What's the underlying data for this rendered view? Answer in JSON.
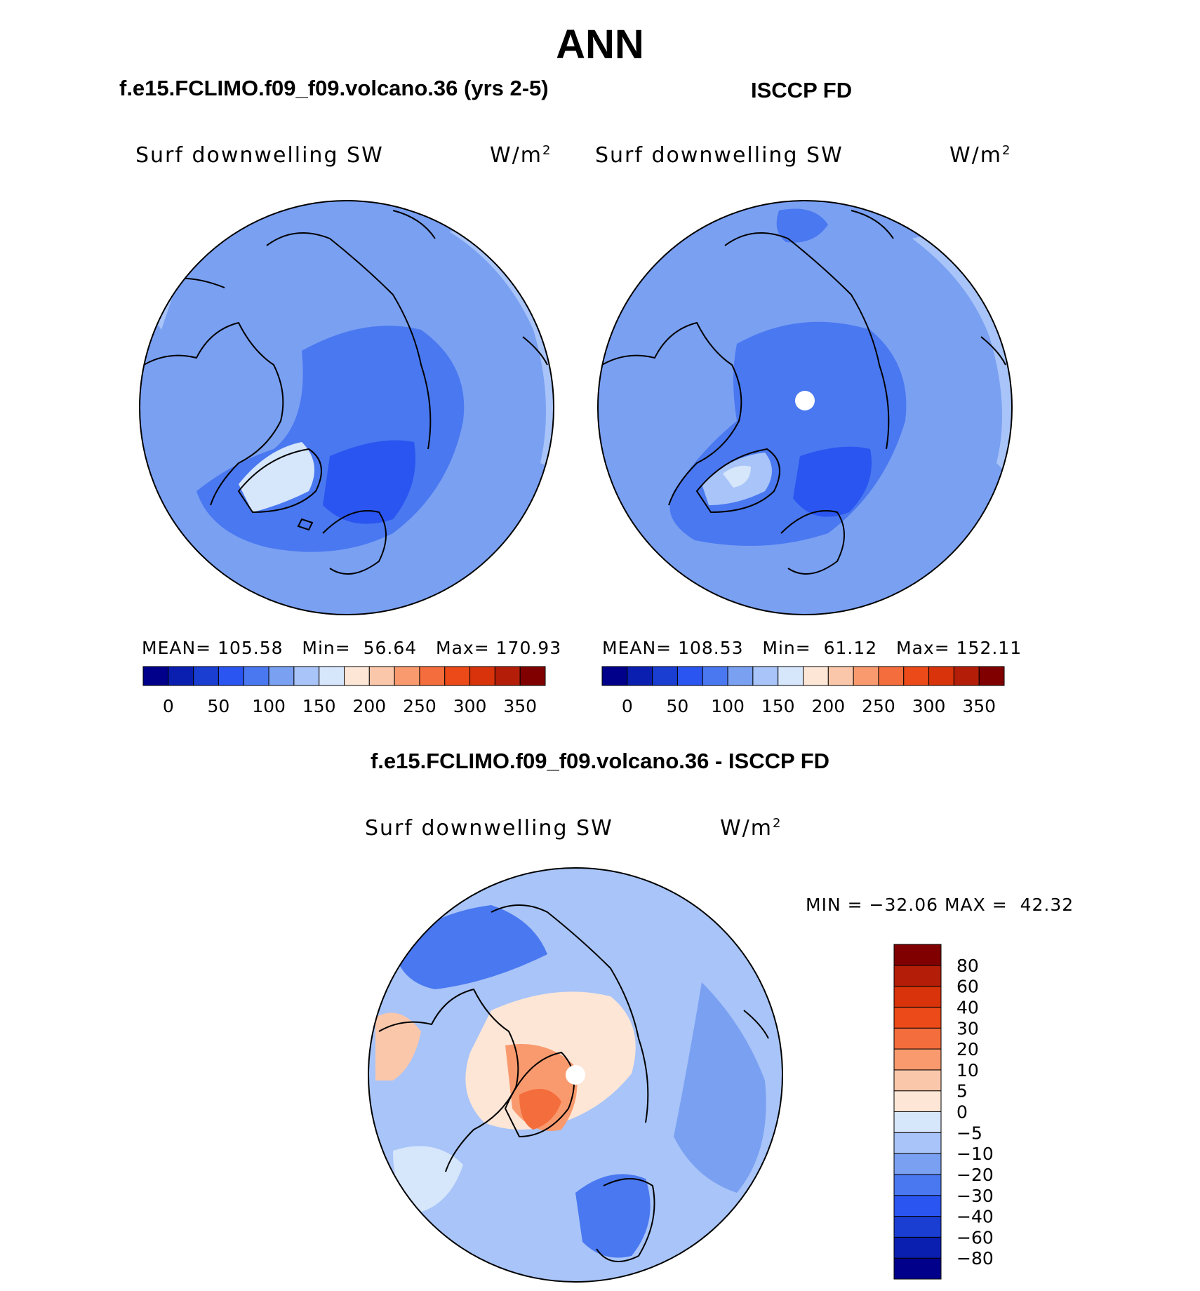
{
  "title": "ANN",
  "panels": {
    "model": {
      "title": "f.e15.FCLIMO.f09_f09.volcano.36 (yrs 2-5)",
      "label": "Surf downwelling SW",
      "units_base": "W/m",
      "units_sup": "2",
      "stats": {
        "mean_label": "MEAN=",
        "mean": "105.58",
        "min_label": "Min=",
        "min": "56.64",
        "max_label": "Max=",
        "max": "170.93"
      }
    },
    "obs": {
      "title": "ISCCP FD",
      "label": "Surf downwelling SW",
      "units_base": "W/m",
      "units_sup": "2",
      "stats": {
        "mean_label": "MEAN=",
        "mean": "108.53",
        "min_label": "Min=",
        "min": "61.12",
        "max_label": "Max=",
        "max": "152.11"
      }
    },
    "diff": {
      "title": "f.e15.FCLIMO.f09_f09.volcano.36 - ISCCP FD",
      "label": "Surf downwelling SW",
      "units_base": "W/m",
      "units_sup": "2",
      "stats": {
        "min_label": "MIN =",
        "min": "−32.06",
        "max_label": "MAX =",
        "max": "42.32"
      }
    }
  },
  "colorbars": {
    "abs": {
      "colors": [
        "#00008b",
        "#0a1fb0",
        "#1a3dd2",
        "#2a55f0",
        "#4a78f0",
        "#7aa0f2",
        "#a8c4f8",
        "#d6e6fb",
        "#fde6d6",
        "#fbc7aa",
        "#f99a6e",
        "#f46d3c",
        "#ec4a18",
        "#d8330b",
        "#b41e08",
        "#800000"
      ],
      "tick_labels": [
        "0",
        "50",
        "100",
        "150",
        "200",
        "250",
        "300",
        "350"
      ]
    },
    "diff": {
      "colors": [
        "#00008b",
        "#0a1fb0",
        "#1a3dd2",
        "#2a55f0",
        "#4a78f0",
        "#7aa0f2",
        "#a8c4f8",
        "#d6e6fb",
        "#fde6d6",
        "#fbc7aa",
        "#f99a6e",
        "#f46d3c",
        "#ec4a18",
        "#d8330b",
        "#b41e08",
        "#800000"
      ],
      "tick_labels": [
        "80",
        "60",
        "40",
        "30",
        "20",
        "10",
        "5",
        "0",
        "−5",
        "−10",
        "−20",
        "−30",
        "−40",
        "−60",
        "−80"
      ]
    }
  }
}
